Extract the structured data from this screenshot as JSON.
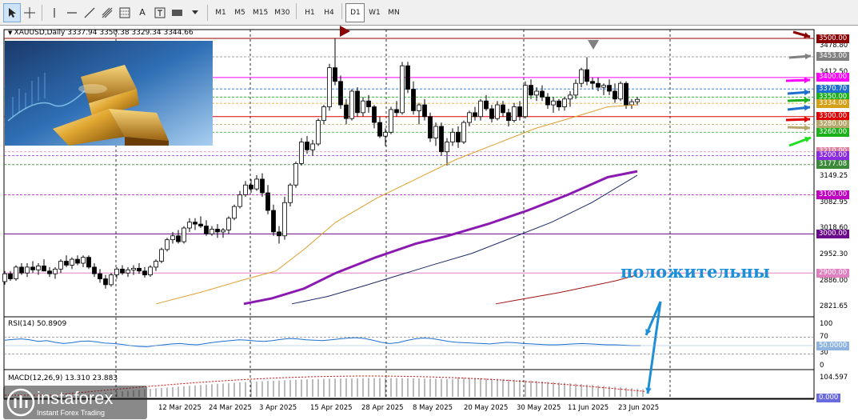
{
  "toolbar": {
    "tools": [
      "cursor-icon",
      "crosshair-icon",
      "vertical-line-icon",
      "horizontal-line-icon",
      "trendline-icon",
      "fibonacci-icon",
      "fibo-expansion-icon",
      "text-A",
      "text-label-icon",
      "shapes-icon"
    ],
    "text_tool": "A",
    "timeframes": [
      "M1",
      "M5",
      "M15",
      "M30",
      "H1",
      "H4",
      "D1",
      "W1",
      "MN"
    ],
    "active_timeframe": "D1"
  },
  "chart": {
    "symbol_line": "XAUUSD,Daily  3337.94 3350.38 3329.34 3344.66",
    "price_ticks": [
      "3478.80",
      "3412.50",
      "3149.25",
      "3082.95",
      "3018.60",
      "2952.30",
      "2886.00",
      "2821.65"
    ],
    "level_labels": [
      {
        "text": "3500.00",
        "price": 3500,
        "color": "#8b0000"
      },
      {
        "text": "3453.00",
        "price": 3453,
        "color": "#808080"
      },
      {
        "text": "3400.00",
        "price": 3400,
        "color": "#ff00ff"
      },
      {
        "text": "3370.70",
        "price": 3370.7,
        "color": "#1e6fd0"
      },
      {
        "text": "3350.00",
        "price": 3350,
        "color": "#1ab11a"
      },
      {
        "text": "3334.00",
        "price": 3334,
        "color": "#d4a017"
      },
      {
        "text": "3300.00",
        "price": 3300,
        "color": "#e00000"
      },
      {
        "text": "3280.00",
        "price": 3280,
        "color": "#b5a86a"
      },
      {
        "text": "3260.00",
        "price": 3260,
        "color": "#1ab11a"
      },
      {
        "text": "3210.00",
        "price": 3210,
        "color": "#e080a0"
      },
      {
        "text": "3200.00",
        "price": 3200,
        "color": "#8a2be2"
      },
      {
        "text": "3177.08",
        "price": 3177.08,
        "color": "#3a8a3a"
      },
      {
        "text": "3100.00",
        "price": 3100,
        "color": "#c000c0"
      },
      {
        "text": "3000.00",
        "price": 3000,
        "color": "#6a0a8a"
      },
      {
        "text": "2900.00",
        "price": 2900,
        "color": "#e080c0"
      }
    ],
    "dates": [
      "12 Mar 2025",
      "24 Mar 2025",
      "3 Apr 2025",
      "15 Apr 2025",
      "28 Apr 2025",
      "8 May 2025",
      "20 May 2025",
      "30 May 2025",
      "11 Jun 2025",
      "23 Jun 2025"
    ],
    "annotation": "положительны"
  },
  "rsi": {
    "label": "RSI(14) 50.8909",
    "ticks": [
      "100",
      "70",
      "30",
      "0"
    ],
    "current": "50.0000"
  },
  "macd": {
    "label": "MACD(12,26,9) 13.310 23.883",
    "top": "104.597",
    "current": "0.000"
  },
  "logo": {
    "name": "instaforex",
    "tagline": "Instant Forex Trading"
  },
  "colors": {
    "bull": "#ffffff",
    "bear": "#000000",
    "ma_orange": "#e0a030",
    "ma_purple": "#8a1ab0",
    "ma_navy": "#1a2a6a",
    "ma_dark_red": "#a01010",
    "annotation": "#1c8fd8"
  }
}
